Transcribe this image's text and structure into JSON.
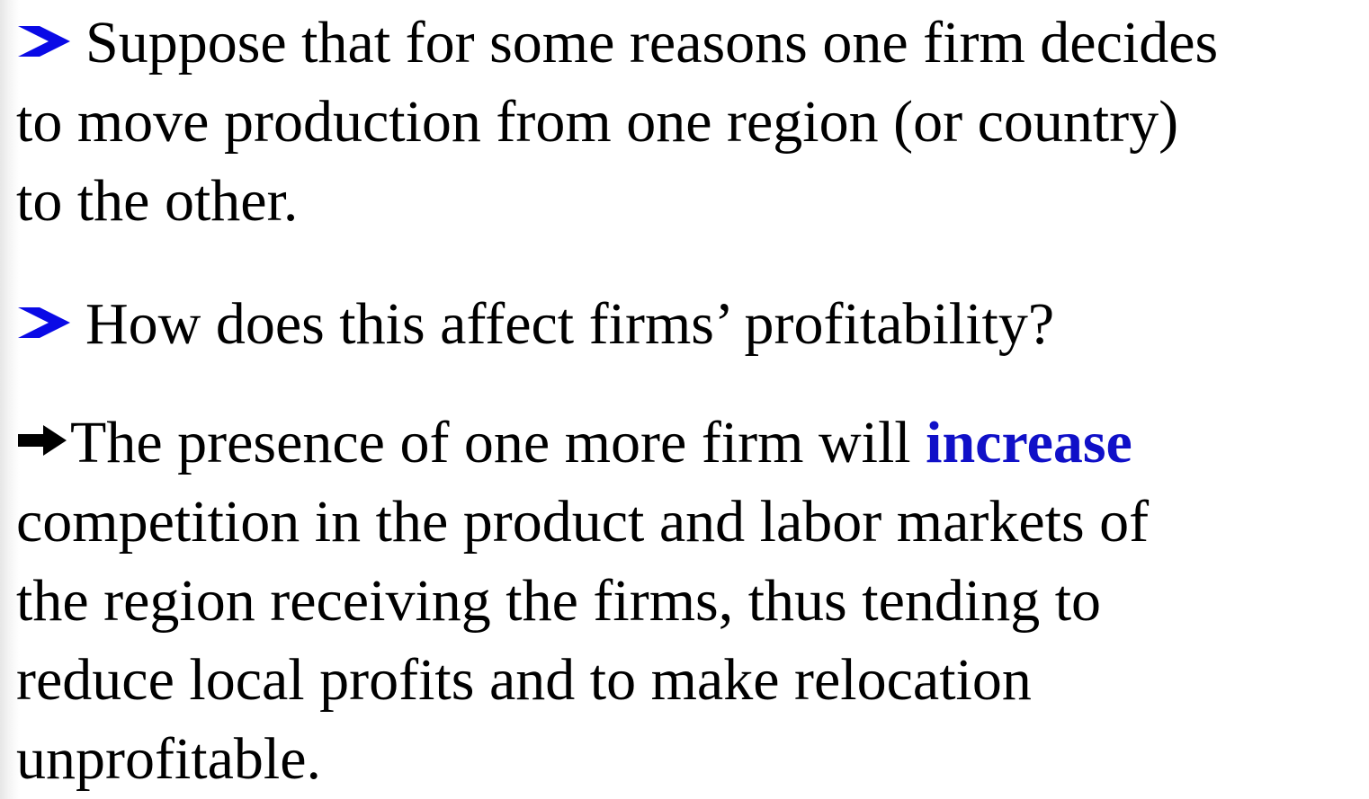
{
  "paragraphs": [
    {
      "lines": [
        "Suppose that for some reasons one firm decides",
        "to move production from one region (or country)",
        "to the other."
      ]
    },
    {
      "lines": [
        "How does this affect firms’ profitability?"
      ]
    },
    {
      "lead": "The presence of one more firm will",
      "emphasis": "increase",
      "lines": [
        "competition in the product and labor markets of",
        "the region receiving the firms, thus tending to",
        "reduce local profits and to make relocation",
        "unprofitable."
      ]
    }
  ]
}
